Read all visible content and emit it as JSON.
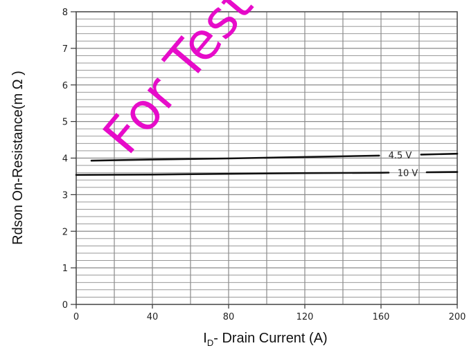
{
  "chart_data": {
    "type": "line",
    "title": "",
    "xlabel": {
      "main": "I",
      "sub": "D",
      "rest": "- Drain Current (A)"
    },
    "ylabel": "Rdson On-Resistance(m Ω )",
    "xlim": [
      0,
      200
    ],
    "ylim": [
      0,
      8
    ],
    "x_ticks": [
      "0",
      "40",
      "80",
      "120",
      "160",
      "200"
    ],
    "y_ticks": [
      "0",
      "1",
      "2",
      "3",
      "4",
      "5",
      "6",
      "7",
      "8"
    ],
    "grid": true,
    "series": [
      {
        "name": "4.5 V",
        "x": [
          8,
          40,
          80,
          120,
          160,
          200
        ],
        "y": [
          3.93,
          3.96,
          3.99,
          4.03,
          4.07,
          4.12
        ]
      },
      {
        "name": "10 V",
        "x": [
          0,
          40,
          80,
          120,
          160,
          200
        ],
        "y": [
          3.54,
          3.55,
          3.57,
          3.59,
          3.6,
          3.62
        ]
      }
    ],
    "watermark": "For Test"
  },
  "colors": {
    "line": "#111111",
    "grid": "#8a8a8a",
    "watermark": "#e600c8"
  }
}
